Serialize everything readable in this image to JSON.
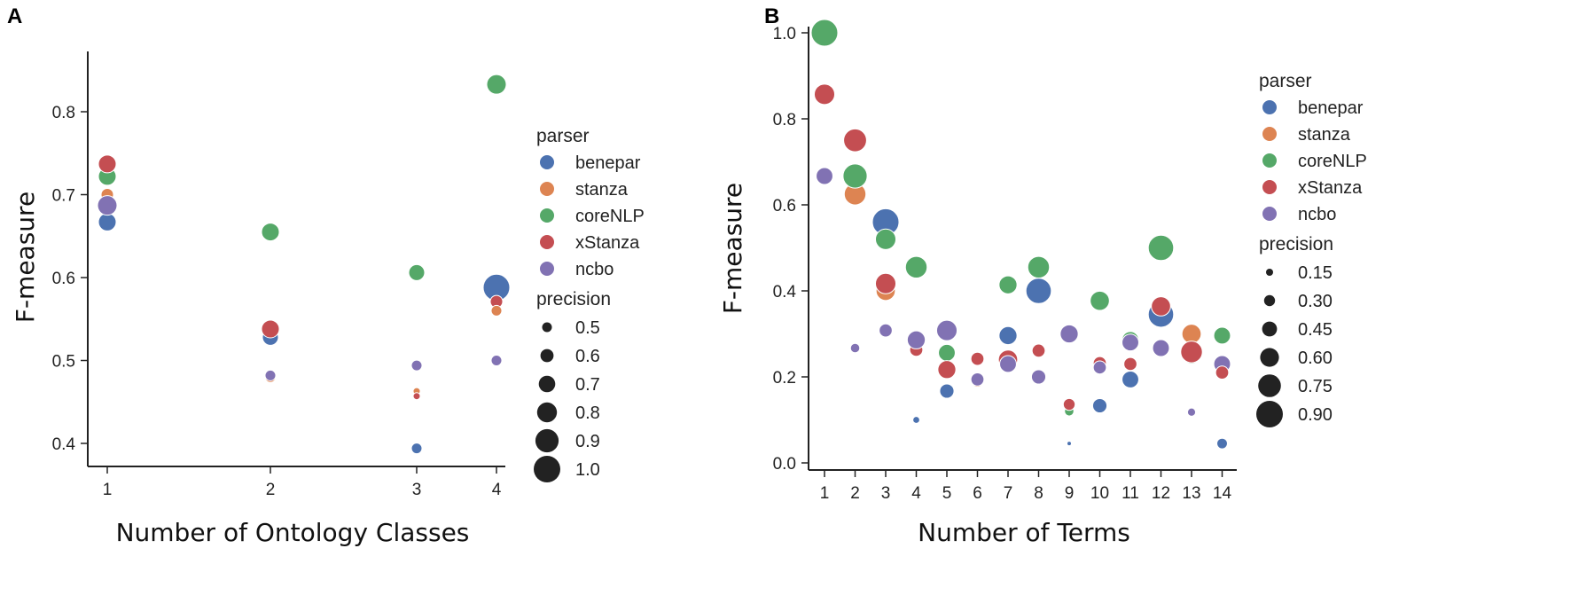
{
  "colors": {
    "benepar": "#4c72b0",
    "stanza": "#dd8452",
    "coreNLP": "#55a868",
    "xStanza": "#c44e52",
    "ncbo": "#8172b3"
  },
  "chart_data": [
    {
      "panel": "A",
      "type": "scatter",
      "xlabel": "Number of Ontology Classes",
      "ylabel": "F-measure",
      "x_ticks": [
        "1",
        "2",
        "3",
        "4"
      ],
      "y_ticks": [
        "0.4",
        "0.5",
        "0.6",
        "0.7",
        "0.8"
      ],
      "ylim": [
        0.37,
        0.86
      ],
      "legend": {
        "hue_title": "parser",
        "hue": [
          "benepar",
          "stanza",
          "coreNLP",
          "xStanza",
          "ncbo"
        ],
        "size_title": "precision",
        "sizes": [
          "0.5",
          "0.6",
          "0.7",
          "0.8",
          "0.9",
          "1.0"
        ],
        "placement": "right"
      },
      "size_range": [
        0.45,
        1.0
      ],
      "points": [
        {
          "x": 1,
          "parser": "benepar",
          "y": 0.667,
          "precision": 0.75
        },
        {
          "x": 1,
          "parser": "stanza",
          "y": 0.7,
          "precision": 0.6
        },
        {
          "x": 1,
          "parser": "coreNLP",
          "y": 0.722,
          "precision": 0.75
        },
        {
          "x": 1,
          "parser": "xStanza",
          "y": 0.737,
          "precision": 0.75
        },
        {
          "x": 1,
          "parser": "ncbo",
          "y": 0.687,
          "precision": 0.8
        },
        {
          "x": 2,
          "parser": "coreNLP",
          "y": 0.655,
          "precision": 0.75
        },
        {
          "x": 2,
          "parser": "benepar",
          "y": 0.528,
          "precision": 0.7
        },
        {
          "x": 2,
          "parser": "xStanza",
          "y": 0.538,
          "precision": 0.75
        },
        {
          "x": 2,
          "parser": "stanza",
          "y": 0.48,
          "precision": 0.55
        },
        {
          "x": 2,
          "parser": "ncbo",
          "y": 0.482,
          "precision": 0.55
        },
        {
          "x": 3,
          "parser": "coreNLP",
          "y": 0.606,
          "precision": 0.7
        },
        {
          "x": 3,
          "parser": "ncbo",
          "y": 0.494,
          "precision": 0.55
        },
        {
          "x": 3,
          "parser": "stanza",
          "y": 0.463,
          "precision": 0.45
        },
        {
          "x": 3,
          "parser": "xStanza",
          "y": 0.457,
          "precision": 0.45
        },
        {
          "x": 3,
          "parser": "benepar",
          "y": 0.394,
          "precision": 0.55
        },
        {
          "x": 4,
          "parser": "coreNLP",
          "y": 0.833,
          "precision": 0.8
        },
        {
          "x": 4,
          "parser": "benepar",
          "y": 0.588,
          "precision": 1.0
        },
        {
          "x": 4,
          "parser": "xStanza",
          "y": 0.571,
          "precision": 0.6
        },
        {
          "x": 4,
          "parser": "stanza",
          "y": 0.56,
          "precision": 0.55
        },
        {
          "x": 4,
          "parser": "ncbo",
          "y": 0.5,
          "precision": 0.55
        }
      ]
    },
    {
      "panel": "B",
      "type": "scatter",
      "xlabel": "Number of  Terms",
      "ylabel": "F-measure",
      "x_ticks": [
        "1",
        "2",
        "3",
        "4",
        "5",
        "6",
        "7",
        "8",
        "9",
        "10",
        "11",
        "12",
        "13",
        "14"
      ],
      "y_ticks": [
        "0.0",
        "0.2",
        "0.4",
        "0.6",
        "0.8",
        "1.0"
      ],
      "ylim": [
        -0.01,
        1.05
      ],
      "legend": {
        "hue_title": "parser",
        "hue": [
          "benepar",
          "stanza",
          "coreNLP",
          "xStanza",
          "ncbo"
        ],
        "size_title": "precision",
        "sizes": [
          "0.15",
          "0.30",
          "0.45",
          "0.60",
          "0.75",
          "0.90"
        ],
        "placement": "right"
      },
      "size_range": [
        0.1,
        1.0
      ],
      "points": [
        {
          "x": 1,
          "parser": "coreNLP",
          "y": 1.0,
          "precision": 1.0
        },
        {
          "x": 1,
          "parser": "xStanza",
          "y": 0.857,
          "precision": 0.75
        },
        {
          "x": 1,
          "parser": "ncbo",
          "y": 0.667,
          "precision": 0.6
        },
        {
          "x": 2,
          "parser": "stanza",
          "y": 0.625,
          "precision": 0.8
        },
        {
          "x": 2,
          "parser": "xStanza",
          "y": 0.75,
          "precision": 0.85
        },
        {
          "x": 2,
          "parser": "coreNLP",
          "y": 0.667,
          "precision": 0.9
        },
        {
          "x": 2,
          "parser": "ncbo",
          "y": 0.267,
          "precision": 0.3
        },
        {
          "x": 3,
          "parser": "benepar",
          "y": 0.56,
          "precision": 1.0
        },
        {
          "x": 3,
          "parser": "coreNLP",
          "y": 0.52,
          "precision": 0.75
        },
        {
          "x": 3,
          "parser": "stanza",
          "y": 0.4,
          "precision": 0.7
        },
        {
          "x": 3,
          "parser": "xStanza",
          "y": 0.417,
          "precision": 0.75
        },
        {
          "x": 3,
          "parser": "ncbo",
          "y": 0.308,
          "precision": 0.45
        },
        {
          "x": 4,
          "parser": "coreNLP",
          "y": 0.455,
          "precision": 0.8
        },
        {
          "x": 4,
          "parser": "xStanza",
          "y": 0.263,
          "precision": 0.45
        },
        {
          "x": 4,
          "parser": "ncbo",
          "y": 0.286,
          "precision": 0.65
        },
        {
          "x": 4,
          "parser": "benepar",
          "y": 0.1,
          "precision": 0.2
        },
        {
          "x": 5,
          "parser": "ncbo",
          "y": 0.308,
          "precision": 0.75
        },
        {
          "x": 5,
          "parser": "coreNLP",
          "y": 0.256,
          "precision": 0.6
        },
        {
          "x": 5,
          "parser": "xStanza",
          "y": 0.217,
          "precision": 0.65
        },
        {
          "x": 5,
          "parser": "benepar",
          "y": 0.167,
          "precision": 0.5
        },
        {
          "x": 6,
          "parser": "xStanza",
          "y": 0.242,
          "precision": 0.45
        },
        {
          "x": 6,
          "parser": "stanza",
          "y": 0.19,
          "precision": 0.4
        },
        {
          "x": 6,
          "parser": "ncbo",
          "y": 0.194,
          "precision": 0.45
        },
        {
          "x": 7,
          "parser": "coreNLP",
          "y": 0.414,
          "precision": 0.65
        },
        {
          "x": 7,
          "parser": "benepar",
          "y": 0.296,
          "precision": 0.65
        },
        {
          "x": 7,
          "parser": "stanza",
          "y": 0.23,
          "precision": 0.6
        },
        {
          "x": 7,
          "parser": "xStanza",
          "y": 0.24,
          "precision": 0.7
        },
        {
          "x": 7,
          "parser": "ncbo",
          "y": 0.23,
          "precision": 0.6
        },
        {
          "x": 8,
          "parser": "coreNLP",
          "y": 0.455,
          "precision": 0.8
        },
        {
          "x": 8,
          "parser": "benepar",
          "y": 0.4,
          "precision": 0.95
        },
        {
          "x": 8,
          "parser": "xStanza",
          "y": 0.261,
          "precision": 0.45
        },
        {
          "x": 8,
          "parser": "ncbo",
          "y": 0.2,
          "precision": 0.5
        },
        {
          "x": 9,
          "parser": "ncbo",
          "y": 0.3,
          "precision": 0.65
        },
        {
          "x": 9,
          "parser": "coreNLP",
          "y": 0.12,
          "precision": 0.3
        },
        {
          "x": 9,
          "parser": "xStanza",
          "y": 0.136,
          "precision": 0.4
        },
        {
          "x": 9,
          "parser": "benepar",
          "y": 0.045,
          "precision": 0.1
        },
        {
          "x": 10,
          "parser": "coreNLP",
          "y": 0.377,
          "precision": 0.7
        },
        {
          "x": 10,
          "parser": "xStanza",
          "y": 0.232,
          "precision": 0.45
        },
        {
          "x": 10,
          "parser": "ncbo",
          "y": 0.222,
          "precision": 0.45
        },
        {
          "x": 10,
          "parser": "benepar",
          "y": 0.133,
          "precision": 0.5
        },
        {
          "x": 11,
          "parser": "coreNLP",
          "y": 0.286,
          "precision": 0.6
        },
        {
          "x": 11,
          "parser": "ncbo",
          "y": 0.28,
          "precision": 0.6
        },
        {
          "x": 11,
          "parser": "xStanza",
          "y": 0.23,
          "precision": 0.45
        },
        {
          "x": 11,
          "parser": "benepar",
          "y": 0.194,
          "precision": 0.6
        },
        {
          "x": 12,
          "parser": "coreNLP",
          "y": 0.5,
          "precision": 0.95
        },
        {
          "x": 12,
          "parser": "benepar",
          "y": 0.345,
          "precision": 0.95
        },
        {
          "x": 12,
          "parser": "xStanza",
          "y": 0.364,
          "precision": 0.7
        },
        {
          "x": 12,
          "parser": "ncbo",
          "y": 0.267,
          "precision": 0.6
        },
        {
          "x": 13,
          "parser": "stanza",
          "y": 0.3,
          "precision": 0.7
        },
        {
          "x": 13,
          "parser": "coreNLP",
          "y": 0.25,
          "precision": 0.6
        },
        {
          "x": 13,
          "parser": "xStanza",
          "y": 0.258,
          "precision": 0.8
        },
        {
          "x": 13,
          "parser": "ncbo",
          "y": 0.118,
          "precision": 0.25
        },
        {
          "x": 14,
          "parser": "coreNLP",
          "y": 0.296,
          "precision": 0.6
        },
        {
          "x": 14,
          "parser": "ncbo",
          "y": 0.23,
          "precision": 0.6
        },
        {
          "x": 14,
          "parser": "xStanza",
          "y": 0.21,
          "precision": 0.45
        },
        {
          "x": 14,
          "parser": "benepar",
          "y": 0.045,
          "precision": 0.35
        }
      ]
    }
  ]
}
